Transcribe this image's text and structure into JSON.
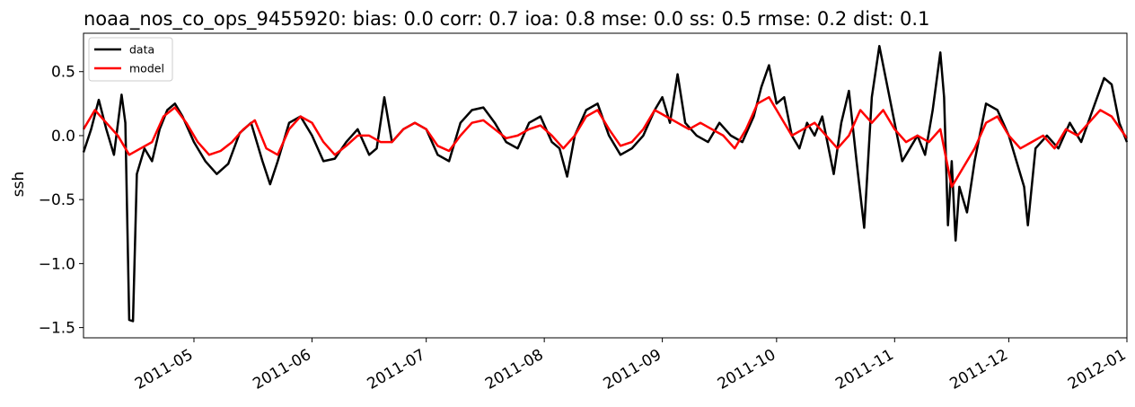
{
  "chart_data": {
    "type": "line",
    "title": "noaa_nos_co_ops_9455920: bias: 0.0  corr: 0.7  ioa: 0.8  mse: 0.0  ss: 0.5  rmse: 0.2  dist: 0.1",
    "xlabel": "",
    "ylabel": "ssh",
    "xlim": [
      "2011-04-02",
      "2012-01-01"
    ],
    "ylim": [
      -1.58,
      0.8
    ],
    "x_ticks": [
      "2011-05",
      "2011-06",
      "2011-07",
      "2011-08",
      "2011-09",
      "2011-10",
      "2011-11",
      "2011-12",
      "2012-01"
    ],
    "y_ticks": [
      -1.5,
      -1.0,
      -0.5,
      0.0,
      0.5
    ],
    "y_tick_labels": [
      "−1.5",
      "−1.0",
      "−0.5",
      "0.0",
      "0.5"
    ],
    "grid": false,
    "legend_position": "top-left",
    "series": [
      {
        "name": "data",
        "color": "#000000",
        "points": [
          [
            "2011-04-02",
            -0.13
          ],
          [
            "2011-04-04",
            0.05
          ],
          [
            "2011-04-06",
            0.28
          ],
          [
            "2011-04-08",
            0.05
          ],
          [
            "2011-04-10",
            -0.15
          ],
          [
            "2011-04-12",
            0.32
          ],
          [
            "2011-04-13",
            0.1
          ],
          [
            "2011-04-14",
            -1.44
          ],
          [
            "2011-04-15",
            -1.45
          ],
          [
            "2011-04-16",
            -0.3
          ],
          [
            "2011-04-18",
            -0.1
          ],
          [
            "2011-04-20",
            -0.2
          ],
          [
            "2011-04-22",
            0.05
          ],
          [
            "2011-04-24",
            0.2
          ],
          [
            "2011-04-26",
            0.25
          ],
          [
            "2011-04-28",
            0.15
          ],
          [
            "2011-05-01",
            -0.05
          ],
          [
            "2011-05-04",
            -0.2
          ],
          [
            "2011-05-07",
            -0.3
          ],
          [
            "2011-05-10",
            -0.22
          ],
          [
            "2011-05-13",
            0.02
          ],
          [
            "2011-05-16",
            0.1
          ],
          [
            "2011-05-19",
            -0.2
          ],
          [
            "2011-05-21",
            -0.38
          ],
          [
            "2011-05-23",
            -0.2
          ],
          [
            "2011-05-26",
            0.1
          ],
          [
            "2011-05-29",
            0.15
          ],
          [
            "2011-06-01",
            0.0
          ],
          [
            "2011-06-04",
            -0.2
          ],
          [
            "2011-06-07",
            -0.18
          ],
          [
            "2011-06-10",
            -0.05
          ],
          [
            "2011-06-13",
            0.05
          ],
          [
            "2011-06-16",
            -0.15
          ],
          [
            "2011-06-18",
            -0.1
          ],
          [
            "2011-06-20",
            0.3
          ],
          [
            "2011-06-22",
            -0.05
          ],
          [
            "2011-06-25",
            0.05
          ],
          [
            "2011-06-28",
            0.1
          ],
          [
            "2011-07-01",
            0.05
          ],
          [
            "2011-07-04",
            -0.15
          ],
          [
            "2011-07-07",
            -0.2
          ],
          [
            "2011-07-10",
            0.1
          ],
          [
            "2011-07-13",
            0.2
          ],
          [
            "2011-07-16",
            0.22
          ],
          [
            "2011-07-19",
            0.1
          ],
          [
            "2011-07-22",
            -0.05
          ],
          [
            "2011-07-25",
            -0.1
          ],
          [
            "2011-07-28",
            0.1
          ],
          [
            "2011-07-31",
            0.15
          ],
          [
            "2011-08-03",
            -0.05
          ],
          [
            "2011-08-05",
            -0.1
          ],
          [
            "2011-08-07",
            -0.32
          ],
          [
            "2011-08-09",
            0.0
          ],
          [
            "2011-08-12",
            0.2
          ],
          [
            "2011-08-15",
            0.25
          ],
          [
            "2011-08-18",
            0.0
          ],
          [
            "2011-08-21",
            -0.15
          ],
          [
            "2011-08-24",
            -0.1
          ],
          [
            "2011-08-27",
            0.0
          ],
          [
            "2011-08-30",
            0.2
          ],
          [
            "2011-09-01",
            0.3
          ],
          [
            "2011-09-03",
            0.1
          ],
          [
            "2011-09-05",
            0.48
          ],
          [
            "2011-09-07",
            0.1
          ],
          [
            "2011-09-10",
            0.0
          ],
          [
            "2011-09-13",
            -0.05
          ],
          [
            "2011-09-16",
            0.1
          ],
          [
            "2011-09-19",
            0.0
          ],
          [
            "2011-09-22",
            -0.05
          ],
          [
            "2011-09-25",
            0.15
          ],
          [
            "2011-09-27",
            0.38
          ],
          [
            "2011-09-29",
            0.55
          ],
          [
            "2011-10-01",
            0.25
          ],
          [
            "2011-10-03",
            0.3
          ],
          [
            "2011-10-05",
            0.0
          ],
          [
            "2011-10-07",
            -0.1
          ],
          [
            "2011-10-09",
            0.1
          ],
          [
            "2011-10-11",
            0.0
          ],
          [
            "2011-10-13",
            0.15
          ],
          [
            "2011-10-16",
            -0.3
          ],
          [
            "2011-10-18",
            0.1
          ],
          [
            "2011-10-20",
            0.35
          ],
          [
            "2011-10-22",
            -0.2
          ],
          [
            "2011-10-24",
            -0.72
          ],
          [
            "2011-10-26",
            0.3
          ],
          [
            "2011-10-28",
            0.7
          ],
          [
            "2011-10-30",
            0.4
          ],
          [
            "2011-11-01",
            0.1
          ],
          [
            "2011-11-03",
            -0.2
          ],
          [
            "2011-11-05",
            -0.1
          ],
          [
            "2011-11-07",
            0.0
          ],
          [
            "2011-11-09",
            -0.15
          ],
          [
            "2011-11-11",
            0.2
          ],
          [
            "2011-11-13",
            0.65
          ],
          [
            "2011-11-14",
            0.3
          ],
          [
            "2011-11-15",
            -0.7
          ],
          [
            "2011-11-16",
            -0.2
          ],
          [
            "2011-11-17",
            -0.82
          ],
          [
            "2011-11-18",
            -0.4
          ],
          [
            "2011-11-20",
            -0.6
          ],
          [
            "2011-11-22",
            -0.2
          ],
          [
            "2011-11-25",
            0.25
          ],
          [
            "2011-11-28",
            0.2
          ],
          [
            "2011-12-01",
            0.0
          ],
          [
            "2011-12-03",
            -0.2
          ],
          [
            "2011-12-05",
            -0.4
          ],
          [
            "2011-12-06",
            -0.7
          ],
          [
            "2011-12-08",
            -0.1
          ],
          [
            "2011-12-11",
            0.0
          ],
          [
            "2011-12-14",
            -0.1
          ],
          [
            "2011-12-17",
            0.1
          ],
          [
            "2011-12-20",
            -0.05
          ],
          [
            "2011-12-23",
            0.2
          ],
          [
            "2011-12-26",
            0.45
          ],
          [
            "2011-12-28",
            0.4
          ],
          [
            "2011-12-30",
            0.1
          ],
          [
            "2012-01-01",
            -0.05
          ]
        ]
      },
      {
        "name": "model",
        "color": "#ff0000",
        "points": [
          [
            "2011-04-02",
            0.05
          ],
          [
            "2011-04-05",
            0.2
          ],
          [
            "2011-04-08",
            0.1
          ],
          [
            "2011-04-11",
            0.0
          ],
          [
            "2011-04-14",
            -0.15
          ],
          [
            "2011-04-17",
            -0.1
          ],
          [
            "2011-04-20",
            -0.05
          ],
          [
            "2011-04-23",
            0.15
          ],
          [
            "2011-04-26",
            0.22
          ],
          [
            "2011-04-29",
            0.1
          ],
          [
            "2011-05-02",
            -0.05
          ],
          [
            "2011-05-05",
            -0.15
          ],
          [
            "2011-05-08",
            -0.12
          ],
          [
            "2011-05-11",
            -0.05
          ],
          [
            "2011-05-14",
            0.05
          ],
          [
            "2011-05-17",
            0.12
          ],
          [
            "2011-05-20",
            -0.1
          ],
          [
            "2011-05-23",
            -0.15
          ],
          [
            "2011-05-26",
            0.05
          ],
          [
            "2011-05-29",
            0.15
          ],
          [
            "2011-06-01",
            0.1
          ],
          [
            "2011-06-04",
            -0.05
          ],
          [
            "2011-06-07",
            -0.15
          ],
          [
            "2011-06-10",
            -0.08
          ],
          [
            "2011-06-13",
            0.0
          ],
          [
            "2011-06-16",
            0.0
          ],
          [
            "2011-06-19",
            -0.05
          ],
          [
            "2011-06-22",
            -0.05
          ],
          [
            "2011-06-25",
            0.05
          ],
          [
            "2011-06-28",
            0.1
          ],
          [
            "2011-07-01",
            0.05
          ],
          [
            "2011-07-04",
            -0.08
          ],
          [
            "2011-07-07",
            -0.12
          ],
          [
            "2011-07-10",
            0.0
          ],
          [
            "2011-07-13",
            0.1
          ],
          [
            "2011-07-16",
            0.12
          ],
          [
            "2011-07-19",
            0.05
          ],
          [
            "2011-07-22",
            -0.02
          ],
          [
            "2011-07-25",
            0.0
          ],
          [
            "2011-07-28",
            0.05
          ],
          [
            "2011-07-31",
            0.08
          ],
          [
            "2011-08-03",
            0.0
          ],
          [
            "2011-08-06",
            -0.1
          ],
          [
            "2011-08-09",
            0.0
          ],
          [
            "2011-08-12",
            0.15
          ],
          [
            "2011-08-15",
            0.2
          ],
          [
            "2011-08-18",
            0.05
          ],
          [
            "2011-08-21",
            -0.08
          ],
          [
            "2011-08-24",
            -0.05
          ],
          [
            "2011-08-27",
            0.05
          ],
          [
            "2011-08-30",
            0.2
          ],
          [
            "2011-09-02",
            0.15
          ],
          [
            "2011-09-05",
            0.1
          ],
          [
            "2011-09-08",
            0.05
          ],
          [
            "2011-09-11",
            0.1
          ],
          [
            "2011-09-14",
            0.05
          ],
          [
            "2011-09-17",
            0.0
          ],
          [
            "2011-09-20",
            -0.1
          ],
          [
            "2011-09-23",
            0.05
          ],
          [
            "2011-09-26",
            0.25
          ],
          [
            "2011-09-29",
            0.3
          ],
          [
            "2011-10-02",
            0.15
          ],
          [
            "2011-10-05",
            0.0
          ],
          [
            "2011-10-08",
            0.05
          ],
          [
            "2011-10-11",
            0.1
          ],
          [
            "2011-10-14",
            0.0
          ],
          [
            "2011-10-17",
            -0.1
          ],
          [
            "2011-10-20",
            0.0
          ],
          [
            "2011-10-23",
            0.2
          ],
          [
            "2011-10-26",
            0.1
          ],
          [
            "2011-10-29",
            0.2
          ],
          [
            "2011-11-01",
            0.05
          ],
          [
            "2011-11-04",
            -0.05
          ],
          [
            "2011-11-07",
            0.0
          ],
          [
            "2011-11-10",
            -0.05
          ],
          [
            "2011-11-13",
            0.05
          ],
          [
            "2011-11-16",
            -0.4
          ],
          [
            "2011-11-19",
            -0.25
          ],
          [
            "2011-11-22",
            -0.1
          ],
          [
            "2011-11-25",
            0.1
          ],
          [
            "2011-11-28",
            0.15
          ],
          [
            "2011-12-01",
            0.0
          ],
          [
            "2011-12-04",
            -0.1
          ],
          [
            "2011-12-07",
            -0.05
          ],
          [
            "2011-12-10",
            0.0
          ],
          [
            "2011-12-13",
            -0.1
          ],
          [
            "2011-12-16",
            0.05
          ],
          [
            "2011-12-19",
            0.0
          ],
          [
            "2011-12-22",
            0.1
          ],
          [
            "2011-12-25",
            0.2
          ],
          [
            "2011-12-28",
            0.15
          ],
          [
            "2012-01-01",
            -0.02
          ]
        ]
      }
    ]
  }
}
